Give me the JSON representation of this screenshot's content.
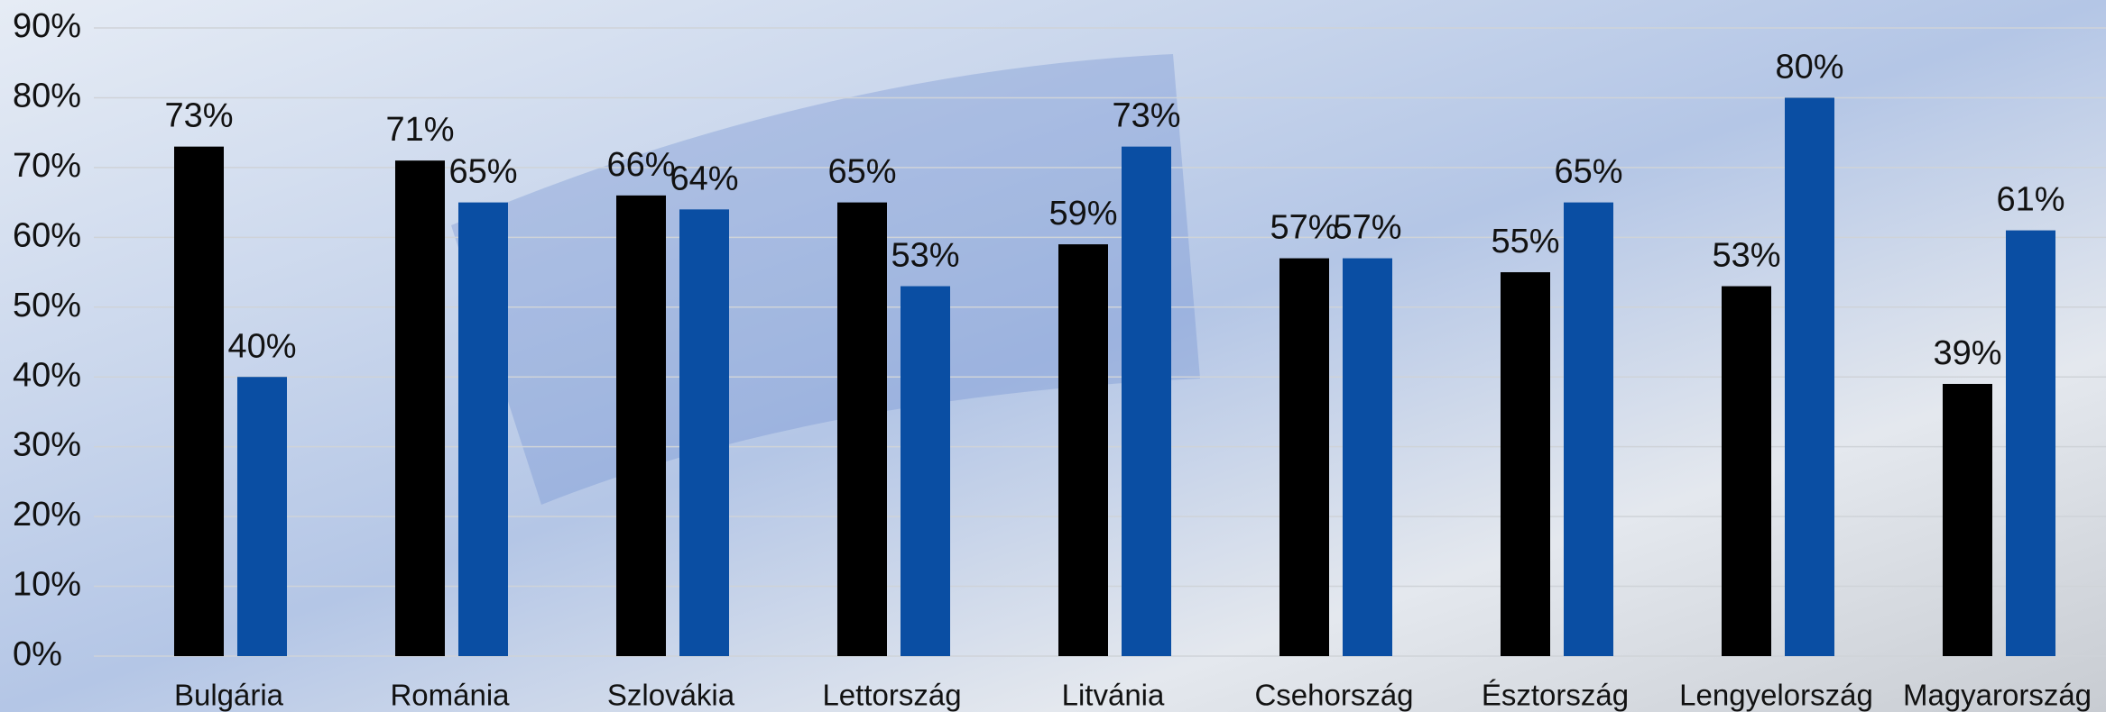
{
  "chart_data": {
    "type": "bar",
    "categories": [
      "Bulgária",
      "Románia",
      "Szlovákia",
      "Lettország",
      "Litvánia",
      "Csehország",
      "Észtország",
      "Lengyelország",
      "Magyarország"
    ],
    "series": [
      {
        "color": "#000000",
        "values": [
          73,
          71,
          66,
          65,
          59,
          57,
          55,
          53,
          39
        ],
        "value_labels": [
          "73%",
          "71%",
          "66%",
          "65%",
          "59%",
          "57%",
          "55%",
          "53%",
          "39%"
        ]
      },
      {
        "color": "#0a4ea3",
        "values": [
          40,
          65,
          64,
          53,
          73,
          57,
          65,
          80,
          61
        ],
        "value_labels": [
          "40%",
          "65%",
          "64%",
          "53%",
          "73%",
          "57%",
          "65%",
          "80%",
          "61%"
        ]
      }
    ],
    "ylim": [
      0,
      90
    ],
    "yticks": [
      {
        "value": 0,
        "label": "0%"
      },
      {
        "value": 10,
        "label": "10%"
      },
      {
        "value": 20,
        "label": "20%"
      },
      {
        "value": 30,
        "label": "30%"
      },
      {
        "value": 40,
        "label": "40%"
      },
      {
        "value": 50,
        "label": "50%"
      },
      {
        "value": 60,
        "label": "60%"
      },
      {
        "value": 70,
        "label": "70%"
      },
      {
        "value": 80,
        "label": "80%"
      },
      {
        "value": 90,
        "label": "90%"
      }
    ],
    "grid": true
  }
}
